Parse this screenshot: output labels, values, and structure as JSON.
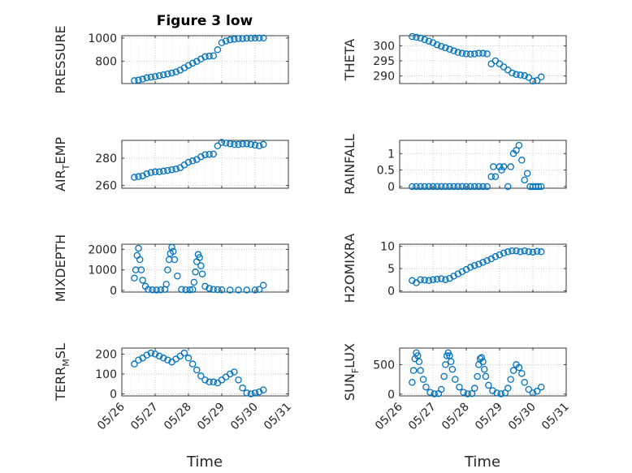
{
  "title": "Figure 3 low",
  "xlabel": "Time",
  "date_ticks": [
    "05/26",
    "05/27",
    "05/28",
    "05/29",
    "05/30",
    "05/31"
  ],
  "colors": {
    "marker": "#0072BD",
    "axis": "#262626",
    "grid": "#bdbdbd"
  },
  "chart_data": [
    {
      "type": "scatter",
      "key": "pressure",
      "ylabel": {
        "main": "PRESSURE",
        "sub": ""
      },
      "ylim": [
        610,
        1020
      ],
      "yticks": [
        800,
        1000
      ],
      "ytick_labels": [
        "800",
        "1000"
      ],
      "grid": true,
      "x": [
        "05/26 09:00",
        "05/26 12:00",
        "05/26 15:00",
        "05/26 18:00",
        "05/26 21:00",
        "05/27 00:00",
        "05/27 03:00",
        "05/27 06:00",
        "05/27 09:00",
        "05/27 12:00",
        "05/27 15:00",
        "05/27 18:00",
        "05/27 21:00",
        "05/28 00:00",
        "05/28 03:00",
        "05/28 06:00",
        "05/28 09:00",
        "05/28 12:00",
        "05/28 15:00",
        "05/28 18:00",
        "05/28 21:00",
        "05/29 00:00",
        "05/29 03:00",
        "05/29 06:00",
        "05/29 09:00",
        "05/29 12:00",
        "05/29 15:00",
        "05/29 18:00",
        "05/29 21:00",
        "05/30 00:00",
        "05/30 03:00",
        "05/30 06:00"
      ],
      "y": [
        635,
        640,
        648,
        660,
        665,
        670,
        678,
        685,
        692,
        700,
        710,
        725,
        745,
        765,
        785,
        800,
        820,
        840,
        845,
        848,
        900,
        960,
        975,
        985,
        990,
        995,
        995,
        998,
        998,
        1000,
        1000,
        1000
      ]
    },
    {
      "type": "scatter",
      "key": "theta",
      "ylabel": {
        "main": "THETA",
        "sub": ""
      },
      "ylim": [
        287.5,
        303.3
      ],
      "yticks": [
        290,
        295,
        300
      ],
      "ytick_labels": [
        "290",
        "295",
        "300"
      ],
      "grid": true,
      "x": [
        "05/26 09:00",
        "05/26 12:00",
        "05/26 15:00",
        "05/26 18:00",
        "05/26 21:00",
        "05/27 00:00",
        "05/27 03:00",
        "05/27 06:00",
        "05/27 09:00",
        "05/27 12:00",
        "05/27 15:00",
        "05/27 18:00",
        "05/27 21:00",
        "05/28 00:00",
        "05/28 03:00",
        "05/28 06:00",
        "05/28 09:00",
        "05/28 12:00",
        "05/28 15:00",
        "05/28 18:00",
        "05/28 21:00",
        "05/29 00:00",
        "05/29 03:00",
        "05/29 06:00",
        "05/29 09:00",
        "05/29 12:00",
        "05/29 15:00",
        "05/29 18:00",
        "05/29 21:00",
        "05/30 00:00",
        "05/30 03:00",
        "05/30 06:00"
      ],
      "y": [
        303,
        302.8,
        302.5,
        302,
        301.5,
        301,
        300.3,
        299.8,
        299.3,
        298.8,
        298.3,
        297.8,
        297.5,
        297.3,
        297.2,
        297.3,
        297.5,
        297.5,
        297.3,
        294,
        295,
        294,
        293,
        292,
        291,
        290.5,
        290.3,
        290.1,
        289.5,
        288.3,
        288.5,
        289.7
      ]
    },
    {
      "type": "scatter",
      "key": "air_temp",
      "ylabel": {
        "main": "AIR",
        "sub": "T",
        "rest": "EMP"
      },
      "ylim": [
        258,
        293
      ],
      "yticks": [
        260,
        280
      ],
      "ytick_labels": [
        "260",
        "280"
      ],
      "grid": true,
      "x": [
        "05/26 09:00",
        "05/26 12:00",
        "05/26 15:00",
        "05/26 18:00",
        "05/26 21:00",
        "05/27 00:00",
        "05/27 03:00",
        "05/27 06:00",
        "05/27 09:00",
        "05/27 12:00",
        "05/27 15:00",
        "05/27 18:00",
        "05/27 21:00",
        "05/28 00:00",
        "05/28 03:00",
        "05/28 06:00",
        "05/28 09:00",
        "05/28 12:00",
        "05/28 15:00",
        "05/28 18:00",
        "05/28 21:00",
        "05/29 00:00",
        "05/29 03:00",
        "05/29 06:00",
        "05/29 09:00",
        "05/29 12:00",
        "05/29 15:00",
        "05/29 18:00",
        "05/29 21:00",
        "05/30 00:00",
        "05/30 03:00",
        "05/30 06:00"
      ],
      "y": [
        266,
        266.5,
        267,
        268.5,
        269.5,
        270,
        270,
        270.5,
        271,
        271.5,
        272,
        273,
        275,
        277,
        278,
        279,
        281,
        282.5,
        282.8,
        283,
        289,
        291.5,
        291,
        290.5,
        290,
        290,
        290.3,
        290.5,
        290,
        289.5,
        289,
        290
      ]
    },
    {
      "type": "scatter",
      "key": "rainfall",
      "ylabel": {
        "main": "RAINFALL",
        "sub": ""
      },
      "ylim": [
        -0.05,
        1.4
      ],
      "yticks": [
        0,
        0.5,
        1
      ],
      "ytick_labels": [
        "0",
        "0.5",
        "1"
      ],
      "grid": true,
      "x": [
        "05/26 09:00",
        "05/26 12:00",
        "05/26 15:00",
        "05/26 18:00",
        "05/26 21:00",
        "05/27 00:00",
        "05/27 03:00",
        "05/27 06:00",
        "05/27 09:00",
        "05/27 12:00",
        "05/27 15:00",
        "05/27 18:00",
        "05/27 21:00",
        "05/28 00:00",
        "05/28 03:00",
        "05/28 06:00",
        "05/28 09:00",
        "05/28 12:00",
        "05/28 15:00",
        "05/28 18:00",
        "05/28 19:30",
        "05/28 21:00",
        "05/29 00:00",
        "05/29 01:30",
        "05/29 03:00",
        "05/29 06:00",
        "05/29 08:00",
        "05/29 10:00",
        "05/29 12:00",
        "05/29 14:00",
        "05/29 16:00",
        "05/29 18:00",
        "05/29 20:00",
        "05/29 22:00",
        "05/30 00:00",
        "05/30 02:00",
        "05/30 04:00",
        "05/30 06:00"
      ],
      "y": [
        0,
        0,
        0,
        0,
        0,
        0,
        0,
        0,
        0,
        0,
        0,
        0,
        0,
        0,
        0,
        0,
        0,
        0,
        0,
        0.3,
        0.6,
        0.3,
        0.6,
        0.5,
        0.6,
        0,
        0.6,
        1.0,
        1.1,
        1.25,
        0.8,
        0.2,
        0.4,
        0,
        0,
        0,
        0,
        0
      ]
    },
    {
      "type": "scatter",
      "key": "mixdepth",
      "ylabel": {
        "main": "MIXDEPTH",
        "sub": ""
      },
      "ylim": [
        -80,
        2250
      ],
      "yticks": [
        0,
        1000,
        2000
      ],
      "ytick_labels": [
        "0",
        "1000",
        "2000"
      ],
      "grid": true,
      "x": [
        "05/26 09:00",
        "05/26 10:00",
        "05/26 11:00",
        "05/26 12:00",
        "05/26 13:00",
        "05/26 14:00",
        "05/26 15:00",
        "05/26 17:00",
        "05/26 19:00",
        "05/26 22:00",
        "05/27 01:00",
        "05/27 04:00",
        "05/27 07:00",
        "05/27 08:00",
        "05/27 09:00",
        "05/27 10:00",
        "05/27 11:00",
        "05/27 12:00",
        "05/27 13:00",
        "05/27 14:00",
        "05/27 16:00",
        "05/27 19:00",
        "05/27 22:00",
        "05/28 01:00",
        "05/28 03:00",
        "05/28 04:00",
        "05/28 05:00",
        "05/28 06:00",
        "05/28 07:00",
        "05/28 08:00",
        "05/28 09:00",
        "05/28 10:00",
        "05/28 12:00",
        "05/28 15:00",
        "05/28 18:00",
        "05/28 21:00",
        "05/29 00:00",
        "05/29 06:00",
        "05/29 12:00",
        "05/29 18:00",
        "05/30 00:00",
        "05/30 03:00",
        "05/30 06:00"
      ],
      "y": [
        600,
        1000,
        1700,
        2050,
        1500,
        1000,
        500,
        200,
        50,
        30,
        20,
        30,
        50,
        300,
        1000,
        1500,
        1800,
        2100,
        1900,
        1500,
        700,
        50,
        30,
        30,
        50,
        400,
        900,
        1400,
        1750,
        1600,
        1200,
        800,
        200,
        100,
        50,
        40,
        30,
        20,
        20,
        20,
        20,
        50,
        250
      ]
    },
    {
      "type": "scatter",
      "key": "h2omixra",
      "ylabel": {
        "main": "H2OMIXRA",
        "sub": ""
      },
      "ylim": [
        -0.3,
        10.5
      ],
      "yticks": [
        0,
        5,
        10
      ],
      "ytick_labels": [
        "0",
        "5",
        "10"
      ],
      "grid": true,
      "x": [
        "05/26 09:00",
        "05/26 12:00",
        "05/26 15:00",
        "05/26 18:00",
        "05/26 21:00",
        "05/27 00:00",
        "05/27 03:00",
        "05/27 06:00",
        "05/27 09:00",
        "05/27 12:00",
        "05/27 15:00",
        "05/27 18:00",
        "05/27 21:00",
        "05/28 00:00",
        "05/28 03:00",
        "05/28 06:00",
        "05/28 09:00",
        "05/28 12:00",
        "05/28 15:00",
        "05/28 18:00",
        "05/28 21:00",
        "05/29 00:00",
        "05/29 03:00",
        "05/29 06:00",
        "05/29 09:00",
        "05/29 12:00",
        "05/29 15:00",
        "05/29 18:00",
        "05/29 21:00",
        "05/30 00:00",
        "05/30 03:00",
        "05/30 06:00"
      ],
      "y": [
        2.3,
        1.8,
        2.5,
        2.4,
        2.3,
        2.5,
        2.6,
        2.7,
        2.5,
        2.8,
        3.3,
        3.8,
        4.3,
        4.8,
        5.3,
        5.7,
        6.0,
        6.4,
        6.8,
        7.2,
        7.7,
        8.1,
        8.5,
        8.8,
        9.0,
        9.0,
        8.8,
        9.0,
        8.8,
        8.7,
        8.9,
        8.8
      ]
    },
    {
      "type": "scatter",
      "key": "terr_msl",
      "ylabel": {
        "main": "TERR",
        "sub": "M",
        "rest": "SL"
      },
      "ylim": [
        -10,
        230
      ],
      "yticks": [
        0,
        100,
        200
      ],
      "ytick_labels": [
        "0",
        "100",
        "200"
      ],
      "grid": true,
      "x": [
        "05/26 09:00",
        "05/26 12:00",
        "05/26 15:00",
        "05/26 18:00",
        "05/26 21:00",
        "05/27 00:00",
        "05/27 03:00",
        "05/27 06:00",
        "05/27 09:00",
        "05/27 12:00",
        "05/27 15:00",
        "05/27 18:00",
        "05/27 21:00",
        "05/28 00:00",
        "05/28 03:00",
        "05/28 06:00",
        "05/28 09:00",
        "05/28 12:00",
        "05/28 15:00",
        "05/28 18:00",
        "05/28 21:00",
        "05/29 00:00",
        "05/29 03:00",
        "05/29 06:00",
        "05/29 09:00",
        "05/29 12:00",
        "05/29 15:00",
        "05/29 18:00",
        "05/29 21:00",
        "05/30 00:00",
        "05/30 03:00",
        "05/30 06:00"
      ],
      "y": [
        150,
        170,
        180,
        195,
        205,
        200,
        190,
        180,
        170,
        160,
        175,
        190,
        205,
        180,
        150,
        120,
        90,
        70,
        60,
        60,
        55,
        70,
        85,
        100,
        110,
        70,
        30,
        5,
        0,
        5,
        10,
        20
      ]
    },
    {
      "type": "scatter",
      "key": "sun_flux",
      "ylabel": {
        "main": "SUN",
        "sub": "F",
        "rest": "LUX"
      },
      "ylim": [
        -30,
        780
      ],
      "yticks": [
        0,
        500
      ],
      "ytick_labels": [
        "0",
        "500"
      ],
      "grid": true,
      "x": [
        "05/26 09:00",
        "05/26 10:00",
        "05/26 11:00",
        "05/26 12:00",
        "05/26 13:00",
        "05/26 14:00",
        "05/26 15:00",
        "05/26 17:00",
        "05/26 19:00",
        "05/26 22:00",
        "05/27 01:00",
        "05/27 04:00",
        "05/27 06:00",
        "05/27 08:00",
        "05/27 09:00",
        "05/27 10:00",
        "05/27 11:00",
        "05/27 12:00",
        "05/27 13:00",
        "05/27 14:00",
        "05/27 16:00",
        "05/27 19:00",
        "05/27 22:00",
        "05/28 01:00",
        "05/28 04:00",
        "05/28 06:00",
        "05/28 08:00",
        "05/28 09:00",
        "05/28 10:00",
        "05/28 11:00",
        "05/28 12:00",
        "05/28 13:00",
        "05/28 14:00",
        "05/28 16:00",
        "05/28 19:00",
        "05/28 22:00",
        "05/29 01:00",
        "05/29 04:00",
        "05/29 06:00",
        "05/29 08:00",
        "05/29 10:00",
        "05/29 12:00",
        "05/29 14:00",
        "05/29 16:00",
        "05/29 18:00",
        "05/29 21:00",
        "05/30 00:00",
        "05/30 03:00",
        "05/30 06:00"
      ],
      "y": [
        200,
        400,
        600,
        700,
        650,
        550,
        400,
        250,
        120,
        30,
        5,
        10,
        80,
        300,
        500,
        650,
        700,
        650,
        550,
        420,
        250,
        120,
        30,
        5,
        10,
        100,
        300,
        500,
        600,
        620,
        550,
        420,
        300,
        150,
        60,
        20,
        5,
        20,
        100,
        250,
        400,
        500,
        450,
        350,
        200,
        80,
        20,
        50,
        120
      ]
    }
  ]
}
